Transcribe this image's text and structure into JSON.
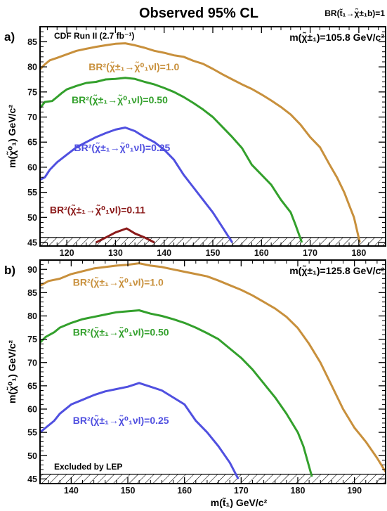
{
  "header": {
    "title": "Observed 95% CL",
    "br_label": "BR(t̃₁→χ̃±₁b)=1"
  },
  "colors": {
    "br_1_0": "#c8903c",
    "br_0_50": "#33a02c",
    "br_0_25": "#5050e0",
    "br_0_11": "#8b1a1a",
    "axis": "#000000"
  },
  "chart_data": [
    {
      "type": "line",
      "panel_label": "a)",
      "corner_text": "CDF Run II (2.7 fb⁻¹)",
      "mass_text": "m(χ̃±₁)=105.8 GeV/c²",
      "xlabel": "",
      "ylabel": "m(χ̃⁰₁) GeV/c²",
      "xlim": [
        114.5,
        185.5
      ],
      "ylim": [
        44.3,
        88.0
      ],
      "xticks": [
        120,
        130,
        140,
        150,
        160,
        170,
        180
      ],
      "yticks": [
        45,
        50,
        55,
        60,
        65,
        70,
        75,
        80,
        85
      ],
      "hatch_band": [
        44.3,
        46.0
      ],
      "series": [
        {
          "name": "BR²(χ̃±₁→χ̃⁰₁νl)=1.0",
          "label_pos": [
            124.5,
            79.3
          ],
          "color_key": "br_1_0",
          "x": [
            114.5,
            115.5,
            116.5,
            118,
            120,
            122,
            124,
            126,
            128,
            130,
            132,
            134,
            136,
            138,
            140,
            142,
            144,
            146,
            148,
            150,
            152,
            154,
            156,
            158,
            160,
            162,
            164,
            166,
            168,
            170,
            172,
            174,
            175.5,
            177,
            178,
            179,
            180.2
          ],
          "y": [
            79.5,
            80.5,
            81.3,
            81.8,
            82.5,
            83.2,
            83.6,
            84.0,
            84.3,
            84.6,
            84.7,
            84.3,
            83.8,
            83.2,
            82.8,
            82.3,
            82.0,
            81.2,
            80.6,
            79.6,
            78.5,
            77.5,
            76.5,
            75.6,
            74.5,
            73.3,
            72.0,
            70.5,
            68.5,
            66.0,
            64.0,
            60.5,
            58.0,
            55.0,
            52.5,
            50.0,
            45.0
          ]
        },
        {
          "name": "BR²(χ̃±₁→χ̃⁰₁νl)=0.50",
          "label_pos": [
            121.0,
            72.7
          ],
          "color_key": "br_0_50",
          "x": [
            114.5,
            115.5,
            117,
            118,
            119,
            120,
            122,
            124,
            126,
            128,
            130,
            132,
            134,
            136,
            138,
            140,
            142,
            144,
            146,
            148,
            150,
            152,
            154,
            156,
            158,
            160,
            162,
            164,
            166,
            167,
            168.3
          ],
          "y": [
            71.8,
            73.0,
            73.2,
            74.0,
            74.8,
            75.5,
            76.2,
            76.8,
            77.0,
            77.5,
            77.6,
            77.8,
            77.6,
            77.0,
            76.5,
            75.8,
            75.0,
            74.0,
            72.8,
            71.5,
            70.0,
            68.0,
            66.0,
            63.8,
            60.5,
            58.5,
            56.5,
            53.5,
            51.0,
            48.5,
            45.0
          ]
        },
        {
          "name": "BR²(χ̃±₁→χ̃⁰₁νl)=0.25",
          "label_pos": [
            121.5,
            63.2
          ],
          "color_key": "br_0_25",
          "x": [
            114.5,
            115.5,
            116.5,
            118,
            120,
            122,
            124,
            126,
            128,
            130,
            132,
            134,
            136,
            138,
            140,
            142,
            144,
            146,
            148,
            150,
            152,
            153,
            154
          ],
          "y": [
            57.5,
            58.0,
            59.5,
            61.0,
            62.5,
            64.0,
            65.0,
            66.0,
            66.8,
            67.5,
            67.9,
            67.2,
            66.0,
            65.0,
            63.5,
            61.5,
            58.5,
            56.0,
            53.5,
            51.0,
            48.0,
            46.5,
            45.0
          ]
        },
        {
          "name": "BR²(χ̃±₁→χ̃⁰₁νl)=0.11",
          "label_pos": [
            116.5,
            50.8
          ],
          "color_key": "br_0_11",
          "x": [
            126,
            128,
            130,
            132.3,
            134,
            136,
            138
          ],
          "y": [
            45.0,
            46.0,
            47.0,
            47.8,
            46.8,
            46.0,
            45.0
          ]
        }
      ]
    },
    {
      "type": "line",
      "panel_label": "b)",
      "corner_text": "Excluded by LEP",
      "mass_text": "m(χ̃±₁)=125.8 GeV/c²",
      "xlabel": "m(t̃₁) GeV/c²",
      "ylabel": "m(χ̃⁰₁) GeV/c²",
      "xlim": [
        134.5,
        195.5
      ],
      "ylim": [
        44.0,
        92.0
      ],
      "xticks": [
        140,
        150,
        160,
        170,
        180,
        190
      ],
      "yticks": [
        45,
        50,
        55,
        60,
        65,
        70,
        75,
        80,
        85,
        90
      ],
      "hatch_band": [
        44.0,
        46.0
      ],
      "series": [
        {
          "name": "BR²(χ̃±₁→χ̃⁰₁νl)=1.0",
          "label_pos": [
            140.3,
            86.5
          ],
          "color_key": "br_1_0",
          "x": [
            134.5,
            136,
            138,
            140,
            142,
            144,
            146,
            148,
            150,
            152,
            154,
            156,
            158,
            160,
            162,
            164,
            166,
            168,
            170,
            172,
            174,
            176,
            178,
            180,
            182,
            184,
            186,
            188,
            190,
            192,
            194,
            195.5
          ],
          "y": [
            86.5,
            87.5,
            88.0,
            89.0,
            89.6,
            90.2,
            90.5,
            90.8,
            91.0,
            91.3,
            90.8,
            90.5,
            90.0,
            89.5,
            89.0,
            88.5,
            87.6,
            86.6,
            85.6,
            84.4,
            83.0,
            81.6,
            79.8,
            77.4,
            74.0,
            70.0,
            65.0,
            60.0,
            56.0,
            53.0,
            49.5,
            46.5
          ]
        },
        {
          "name": "BR²(χ̃±₁→χ̃⁰₁νl)=0.50",
          "label_pos": [
            140.3,
            75.8
          ],
          "color_key": "br_0_50",
          "x": [
            134.5,
            135.5,
            137,
            138,
            140,
            142,
            144,
            146,
            148,
            150,
            152,
            154,
            156,
            158,
            160,
            162,
            164,
            166,
            168,
            170,
            172,
            174,
            176,
            178,
            180,
            181,
            182.5
          ],
          "y": [
            74.3,
            75.5,
            76.5,
            77.5,
            78.5,
            79.3,
            79.8,
            80.3,
            80.8,
            81.0,
            81.2,
            80.5,
            80.0,
            79.3,
            78.5,
            77.5,
            76.3,
            75.0,
            73.0,
            71.0,
            68.5,
            65.5,
            62.5,
            59.0,
            55.0,
            52.0,
            45.5
          ]
        },
        {
          "name": "BR²(χ̃±₁→χ̃⁰₁νl)=0.25",
          "label_pos": [
            140.3,
            56.8
          ],
          "color_key": "br_0_25",
          "x": [
            134.5,
            135.5,
            137,
            138,
            140,
            142,
            144,
            146,
            148,
            150,
            152,
            154,
            156,
            158,
            160,
            162,
            164,
            166,
            168,
            169.5
          ],
          "y": [
            55.0,
            56.0,
            57.5,
            59.0,
            61.0,
            62.0,
            63.0,
            63.8,
            64.3,
            64.8,
            65.6,
            64.8,
            64.0,
            62.5,
            61.0,
            57.5,
            55.0,
            52.0,
            48.5,
            45.0
          ]
        }
      ]
    }
  ]
}
